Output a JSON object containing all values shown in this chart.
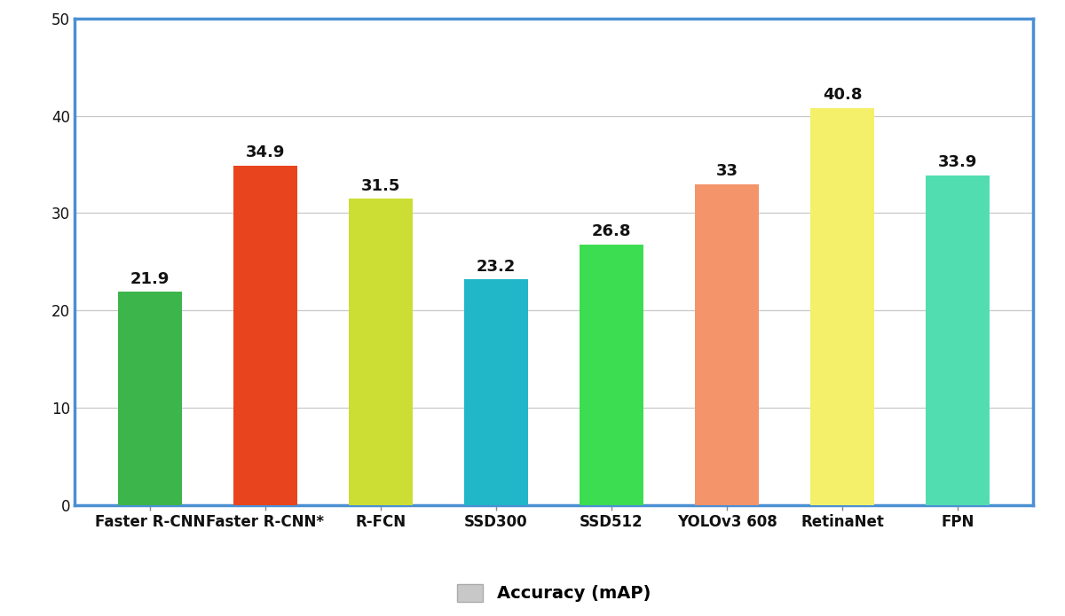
{
  "categories": [
    "Faster R-CNN",
    "Faster R-CNN*",
    "R-FCN",
    "SSD300",
    "SSD512",
    "YOLOv3 608",
    "RetinaNet",
    "FPN"
  ],
  "values": [
    21.9,
    34.9,
    31.5,
    23.2,
    26.8,
    33.0,
    40.8,
    33.9
  ],
  "bar_colors": [
    "#3cb54a",
    "#e8451e",
    "#ccdd33",
    "#21b6c8",
    "#3ddd52",
    "#f4946a",
    "#f5f06a",
    "#52ddb0"
  ],
  "title": "",
  "ylabel": "",
  "ylim": [
    0,
    50
  ],
  "yticks": [
    0,
    10,
    20,
    30,
    40,
    50
  ],
  "grid_color": "#c8c8c8",
  "background_color": "#ffffff",
  "spine_color": "#4a90d4",
  "label_fontsize": 14,
  "value_fontsize": 13,
  "tick_fontsize": 12,
  "legend_label": "Accuracy (mAP)",
  "legend_color": "#c8c8c8",
  "bar_width": 0.55
}
